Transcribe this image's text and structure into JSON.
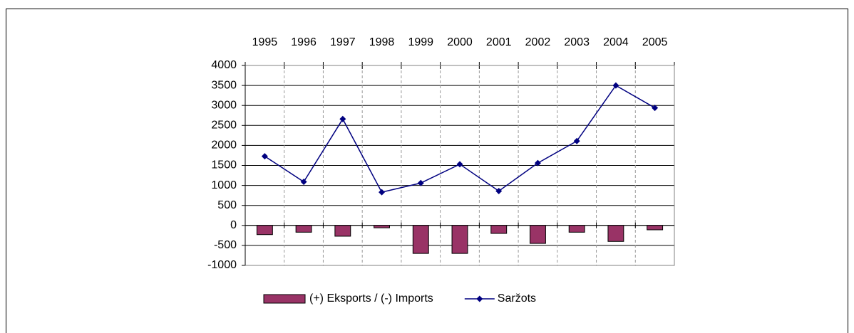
{
  "chart_data": {
    "type": "bar_line",
    "categories": [
      "1995",
      "1996",
      "1997",
      "1998",
      "1999",
      "2000",
      "2001",
      "2002",
      "2003",
      "2004",
      "2005"
    ],
    "series": [
      {
        "name": "(+) Eksports / (-) Imports",
        "type": "bar",
        "color": "#993366",
        "values": [
          -230,
          -170,
          -270,
          -60,
          -700,
          -700,
          -200,
          -450,
          -170,
          -400,
          -110
        ]
      },
      {
        "name": "Saržots",
        "type": "line",
        "color": "#000080",
        "values": [
          1730,
          1090,
          2660,
          830,
          1060,
          1530,
          860,
          1560,
          2110,
          3500,
          2940
        ]
      }
    ],
    "ylim": [
      -1000,
      4000
    ],
    "yticks": [
      -1000,
      -500,
      0,
      500,
      1000,
      1500,
      2000,
      2500,
      3000,
      3500,
      4000
    ],
    "grid": true,
    "legend": "bottom"
  }
}
